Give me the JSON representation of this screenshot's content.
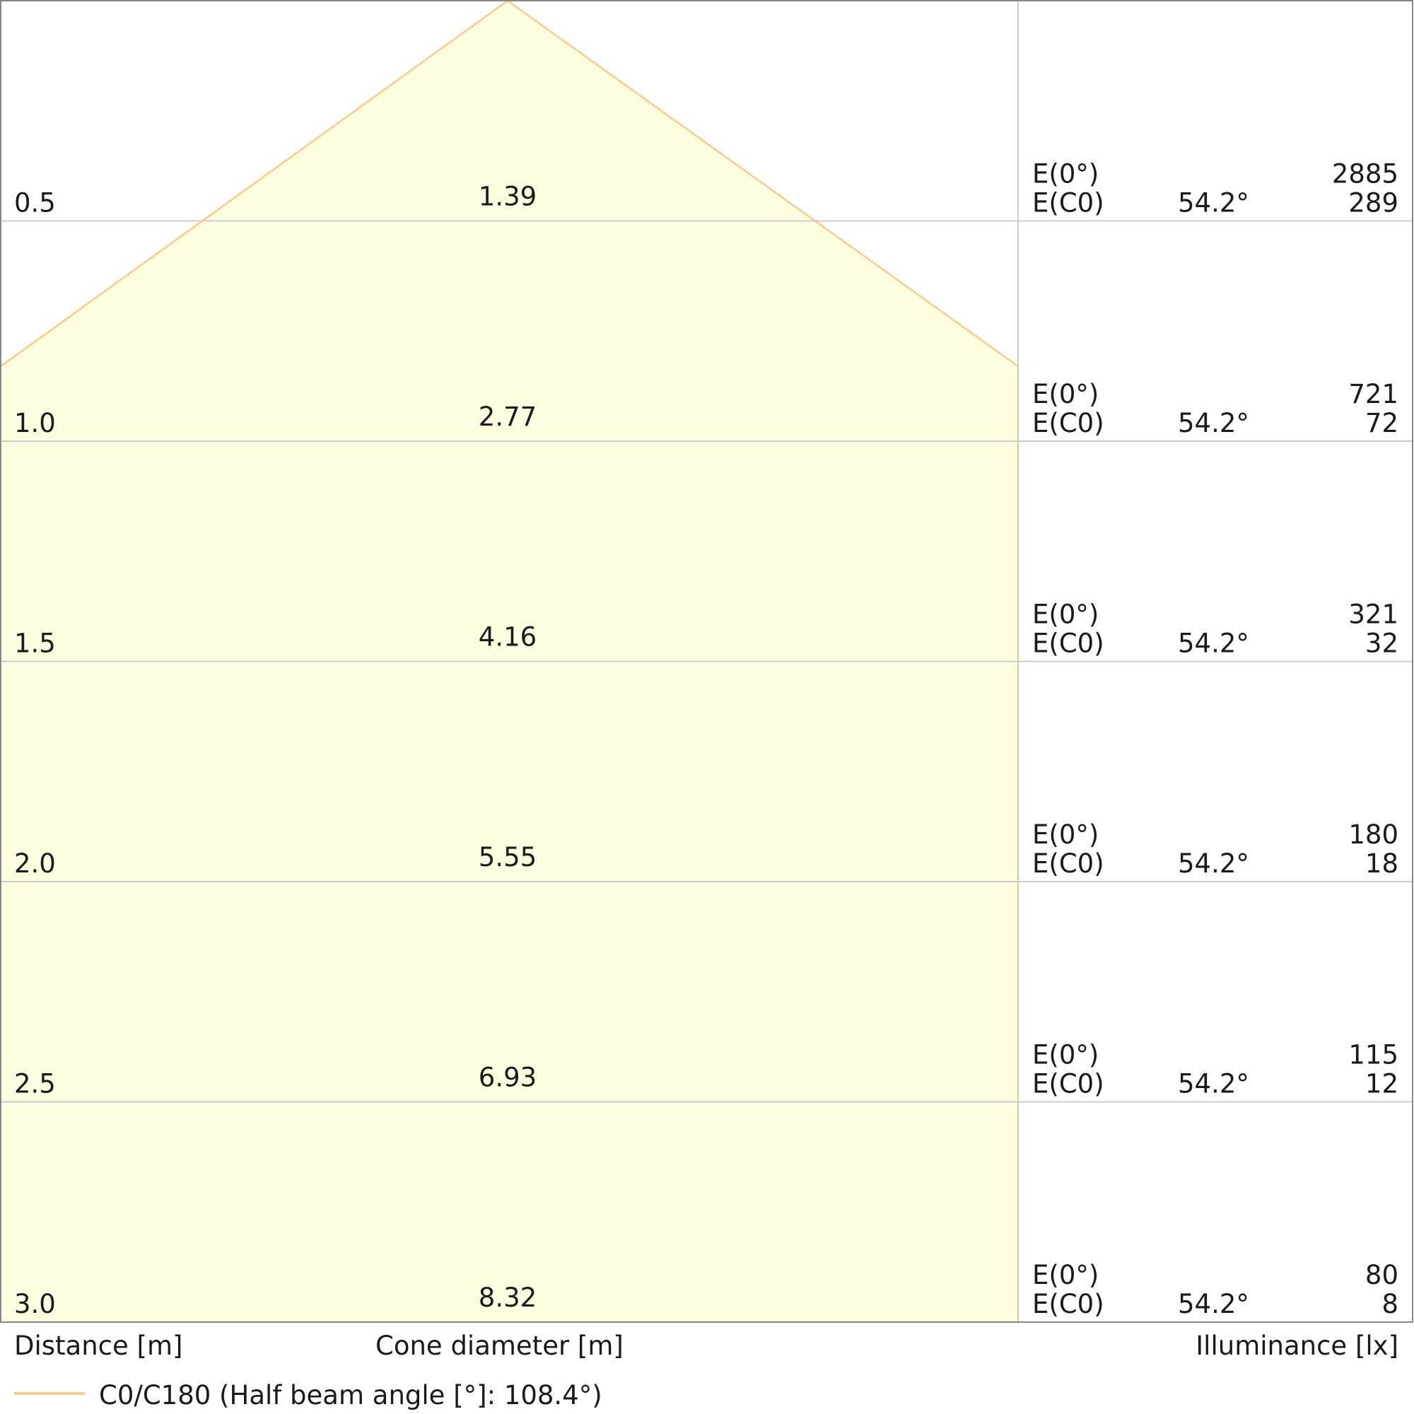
{
  "chart_data": {
    "type": "table",
    "title": "",
    "xlabel_distance": "Distance [m]",
    "xlabel_cone": "Cone diameter [m]",
    "xlabel_illuminance": "Illuminance [lx]",
    "legend": "C0/C180 (Half beam angle [°]: 108.4°)",
    "half_beam_angle_deg": 108.4,
    "rows": [
      {
        "distance": "0.5",
        "cone": "1.39",
        "e0_label": "E(0°)",
        "ec0_label": "E(C0)",
        "angle": "54.2°",
        "e0": "2885",
        "ec0": "289"
      },
      {
        "distance": "1.0",
        "cone": "2.77",
        "e0_label": "E(0°)",
        "ec0_label": "E(C0)",
        "angle": "54.2°",
        "e0": "721",
        "ec0": "72"
      },
      {
        "distance": "1.5",
        "cone": "4.16",
        "e0_label": "E(0°)",
        "ec0_label": "E(C0)",
        "angle": "54.2°",
        "e0": "321",
        "ec0": "32"
      },
      {
        "distance": "2.0",
        "cone": "5.55",
        "e0_label": "E(0°)",
        "ec0_label": "E(C0)",
        "angle": "54.2°",
        "e0": "180",
        "ec0": "18"
      },
      {
        "distance": "2.5",
        "cone": "6.93",
        "e0_label": "E(0°)",
        "ec0_label": "E(C0)",
        "angle": "54.2°",
        "e0": "115",
        "ec0": "12"
      },
      {
        "distance": "3.0",
        "cone": "8.32",
        "e0_label": "E(0°)",
        "ec0_label": "E(C0)",
        "angle": "54.2°",
        "e0": "80",
        "ec0": "8"
      }
    ],
    "colors": {
      "cone_fill": "#fefde0",
      "cone_line": "#fdc98a",
      "grid": "#cccccc",
      "border": "#888888"
    }
  }
}
